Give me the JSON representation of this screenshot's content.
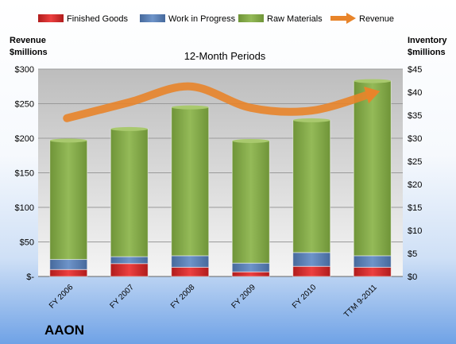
{
  "company": "AAON",
  "legend": [
    {
      "label": "Finished Goods",
      "color": "#e03030",
      "kind": "box"
    },
    {
      "label": "Work in Progress",
      "color": "#5f87bf",
      "kind": "box"
    },
    {
      "label": "Raw Materials",
      "color": "#86ad4c",
      "kind": "box"
    },
    {
      "label": "Revenue",
      "color": "#e8842a",
      "kind": "arrow"
    }
  ],
  "chart_data": {
    "type": "bar",
    "stacked": true,
    "title": "12-Month Periods",
    "ylabel_left": [
      "Revenue",
      "$millions"
    ],
    "ylabel_right": [
      "Inventory",
      "$millions"
    ],
    "categories": [
      "FY 2006",
      "FY 2007",
      "FY 2008",
      "FY 2009",
      "FY 2010",
      "TTM 9-2011"
    ],
    "left_axis": {
      "min": 0,
      "max": 300,
      "ticks": [
        "$-",
        "$50",
        "$100",
        "$150",
        "$200",
        "$250",
        "$300"
      ]
    },
    "right_axis": {
      "min": 0,
      "max": 45,
      "ticks": [
        "$0",
        "$5",
        "$10",
        "$15",
        "$20",
        "$25",
        "$30",
        "$35",
        "$40",
        "$45"
      ]
    },
    "series": [
      {
        "name": "Finished Goods",
        "axis": "right",
        "color": "#e03030",
        "values": [
          1.5,
          2.8,
          2.0,
          1.0,
          2.2,
          2.0
        ]
      },
      {
        "name": "Work in Progress",
        "axis": "right",
        "color": "#5f87bf",
        "values": [
          2.2,
          1.5,
          2.5,
          1.9,
          3.0,
          2.5
        ]
      },
      {
        "name": "Raw Materials",
        "axis": "right",
        "color": "#86ad4c",
        "values": [
          25.8,
          27.7,
          32.2,
          26.5,
          28.7,
          37.9
        ]
      },
      {
        "name": "Revenue",
        "axis": "left",
        "type": "line",
        "color": "#e8842a",
        "values": [
          229,
          252,
          275,
          244,
          240,
          265
        ]
      }
    ]
  }
}
